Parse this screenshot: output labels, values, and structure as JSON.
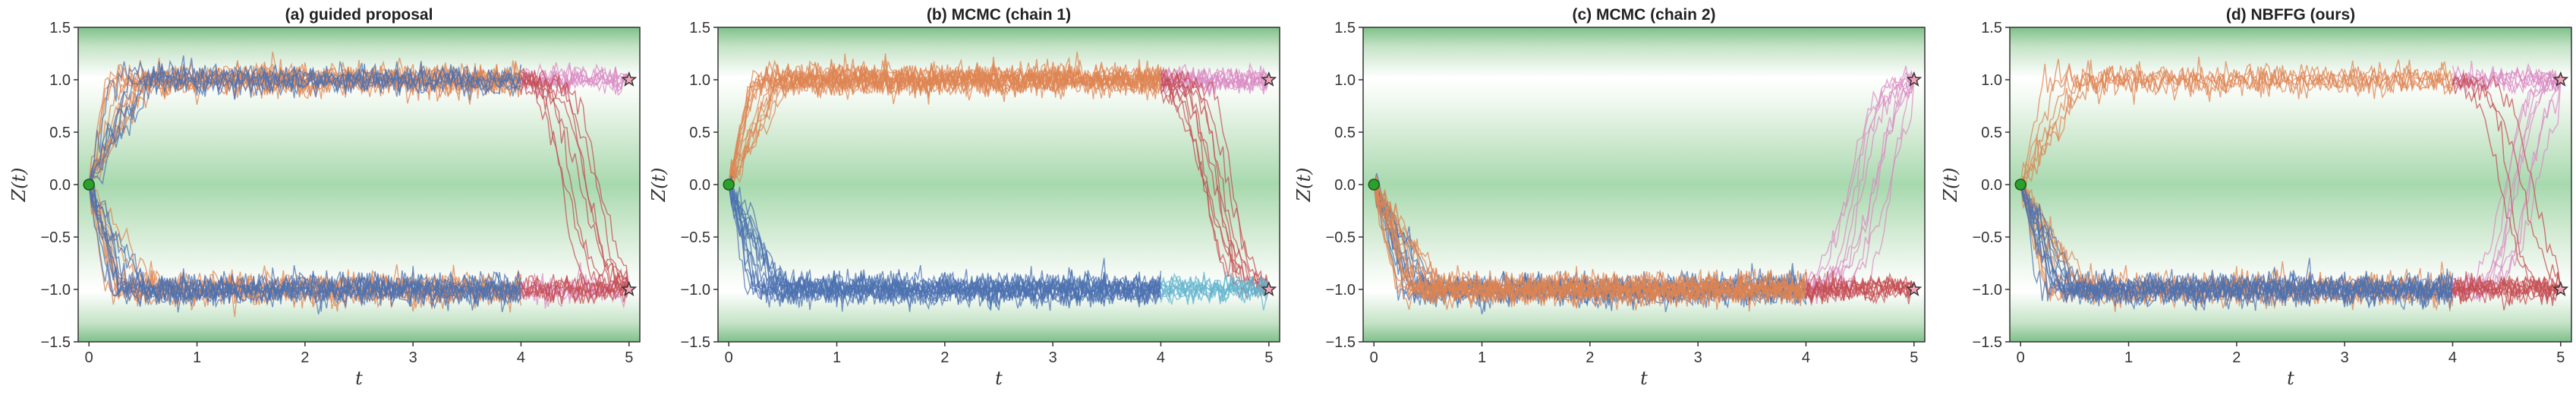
{
  "chart_data": [
    {
      "type": "line",
      "title": "(a) guided proposal",
      "xlabel": "t",
      "ylabel": "Z(t)",
      "xlim": [
        -0.1,
        5.1
      ],
      "ylim": [
        -1.5,
        1.5
      ],
      "xticks": [
        "0",
        "1",
        "2",
        "3",
        "4",
        "5"
      ],
      "yticks": [
        "−1.5",
        "−1.0",
        "−0.5",
        "0.0",
        "0.5",
        "1.0",
        "1.5"
      ],
      "background": "green band centered at Z=0 and at |Z|=1.5 edges, white near |Z|=1",
      "start_point": {
        "t": 0,
        "z": 0.0,
        "color": "#2ca02c"
      },
      "end_points": [
        {
          "t": 5,
          "z": 1.0,
          "marker": "star"
        },
        {
          "t": 5,
          "z": -1.0,
          "marker": "star"
        }
      ],
      "series": [
        {
          "color": "#dd8452",
          "segments": [
            {
              "t_from": 0,
              "t_to": 4,
              "level": 1.0,
              "count": 12
            },
            {
              "t_from": 0,
              "t_to": 4,
              "level": -1.0,
              "count": 10
            }
          ]
        },
        {
          "color": "#4c72b0",
          "segments": [
            {
              "t_from": 0,
              "t_to": 4,
              "level": 1.0,
              "count": 6
            },
            {
              "t_from": 0,
              "t_to": 4,
              "level": -1.0,
              "count": 10
            }
          ]
        },
        {
          "color": "#da8bc3",
          "segments": [
            {
              "t_from": 4,
              "t_to": 5,
              "from_level": 1.0,
              "to_level": 1.0,
              "count": 8
            },
            {
              "t_from": 4,
              "t_to": 5,
              "from_level": -1.0,
              "to_level": -1.0,
              "count": 6
            }
          ]
        },
        {
          "color": "#c44e52",
          "segments": [
            {
              "t_from": 4,
              "t_to": 5,
              "from_level": 1.0,
              "to_level": -1.0,
              "count": 8
            },
            {
              "t_from": 4,
              "t_to": 5,
              "from_level": -1.0,
              "to_level": -1.0,
              "count": 6
            }
          ]
        }
      ]
    },
    {
      "type": "line",
      "title": "(b) MCMC (chain 1)",
      "xlabel": "t",
      "ylabel": "Z(t)",
      "xlim": [
        -0.1,
        5.1
      ],
      "ylim": [
        -1.5,
        1.5
      ],
      "xticks": [
        "0",
        "1",
        "2",
        "3",
        "4",
        "5"
      ],
      "yticks": [
        "−1.5",
        "−1.0",
        "−0.5",
        "0.0",
        "0.5",
        "1.0",
        "1.5"
      ],
      "start_point": {
        "t": 0,
        "z": 0.0,
        "color": "#2ca02c"
      },
      "end_points": [
        {
          "t": 5,
          "z": 1.0,
          "marker": "star"
        },
        {
          "t": 5,
          "z": -1.0,
          "marker": "star"
        }
      ],
      "series": [
        {
          "color": "#dd8452",
          "segments": [
            {
              "t_from": 0,
              "t_to": 4,
              "level": 1.0,
              "count": 16
            }
          ]
        },
        {
          "color": "#4c72b0",
          "segments": [
            {
              "t_from": 0,
              "t_to": 4,
              "level": -1.0,
              "count": 16
            }
          ]
        },
        {
          "color": "#da8bc3",
          "segments": [
            {
              "t_from": 4,
              "t_to": 5,
              "from_level": 1.0,
              "to_level": 1.0,
              "count": 10
            }
          ]
        },
        {
          "color": "#c44e52",
          "segments": [
            {
              "t_from": 4,
              "t_to": 5,
              "from_level": 1.0,
              "to_level": -1.0,
              "count": 10
            }
          ]
        },
        {
          "color": "#64b5cd",
          "segments": [
            {
              "t_from": 4,
              "t_to": 5,
              "from_level": -1.0,
              "to_level": -1.0,
              "count": 10
            }
          ]
        }
      ]
    },
    {
      "type": "line",
      "title": "(c) MCMC (chain 2)",
      "xlabel": "t",
      "ylabel": "Z(t)",
      "xlim": [
        -0.1,
        5.1
      ],
      "ylim": [
        -1.5,
        1.5
      ],
      "xticks": [
        "0",
        "1",
        "2",
        "3",
        "4",
        "5"
      ],
      "yticks": [
        "−1.5",
        "−1.0",
        "−0.5",
        "0.0",
        "0.5",
        "1.0",
        "1.5"
      ],
      "start_point": {
        "t": 0,
        "z": 0.0,
        "color": "#2ca02c"
      },
      "end_points": [
        {
          "t": 5,
          "z": 1.0,
          "marker": "star"
        },
        {
          "t": 5,
          "z": -1.0,
          "marker": "star"
        }
      ],
      "series": [
        {
          "color": "#4c72b0",
          "segments": [
            {
              "t_from": 0,
              "t_to": 4,
              "level": -1.0,
              "count": 12
            }
          ]
        },
        {
          "color": "#dd8452",
          "segments": [
            {
              "t_from": 0,
              "t_to": 4,
              "level": -1.0,
              "count": 14
            }
          ]
        },
        {
          "color": "#da8bc3",
          "segments": [
            {
              "t_from": 4,
              "t_to": 5,
              "from_level": -1.0,
              "to_level": 1.0,
              "count": 10
            }
          ]
        },
        {
          "color": "#c44e52",
          "segments": [
            {
              "t_from": 4,
              "t_to": 5,
              "from_level": -1.0,
              "to_level": -1.0,
              "count": 10
            }
          ]
        }
      ]
    },
    {
      "type": "line",
      "title": "(d) NBFFG (ours)",
      "xlabel": "t",
      "ylabel": "Z(t)",
      "xlim": [
        -0.1,
        5.1
      ],
      "ylim": [
        -1.5,
        1.5
      ],
      "xticks": [
        "0",
        "1",
        "2",
        "3",
        "4",
        "5"
      ],
      "yticks": [
        "−1.5",
        "−1.0",
        "−0.5",
        "0.0",
        "0.5",
        "1.0",
        "1.5"
      ],
      "start_point": {
        "t": 0,
        "z": 0.0,
        "color": "#2ca02c"
      },
      "end_points": [
        {
          "t": 5,
          "z": 1.0,
          "marker": "star"
        },
        {
          "t": 5,
          "z": -1.0,
          "marker": "star"
        }
      ],
      "series": [
        {
          "color": "#dd8452",
          "segments": [
            {
              "t_from": 0,
              "t_to": 4,
              "level": 1.0,
              "count": 6
            },
            {
              "t_from": 0,
              "t_to": 4,
              "level": -1.0,
              "count": 10
            }
          ]
        },
        {
          "color": "#4c72b0",
          "segments": [
            {
              "t_from": 0,
              "t_to": 4,
              "level": -1.0,
              "count": 12
            }
          ]
        },
        {
          "color": "#da8bc3",
          "segments": [
            {
              "t_from": 4,
              "t_to": 5,
              "from_level": -1.0,
              "to_level": 1.0,
              "count": 8
            },
            {
              "t_from": 4,
              "t_to": 5,
              "from_level": 1.0,
              "to_level": 1.0,
              "count": 6
            }
          ]
        },
        {
          "color": "#c44e52",
          "segments": [
            {
              "t_from": 4,
              "t_to": 5,
              "from_level": -1.0,
              "to_level": -1.0,
              "count": 10
            },
            {
              "t_from": 4,
              "t_to": 5,
              "from_level": 1.0,
              "to_level": -1.0,
              "count": 4
            }
          ]
        }
      ]
    }
  ]
}
